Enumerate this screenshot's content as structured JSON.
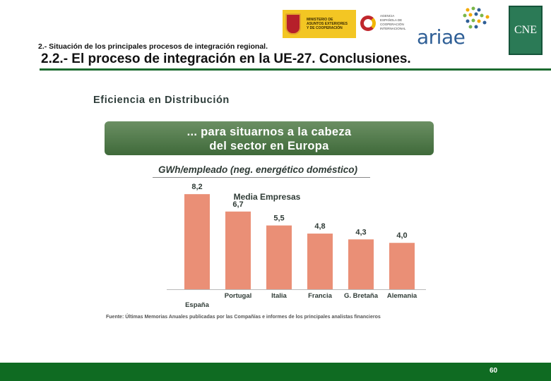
{
  "header": {
    "section_label": "2.- Situación de los principales procesos de integración regional.",
    "title": "2.2.- El proceso de integración en la UE-27.  Conclusiones.",
    "logos": {
      "ministerio_text": "MINISTERIO DE ASUNTOS EXTERIORES Y DE COOPERACIÓN",
      "cooperacion_text": "AGENCIA ESPAÑOLA DE COOPERACIÓN INTERNACIONAL",
      "ariae_text": "ariae",
      "cne_text": "CNE"
    }
  },
  "figure": {
    "heading": "Eficiencia en Distribución",
    "banner_line1": "... para situarnos a la cabeza",
    "banner_line2": "del sector en Europa",
    "subheading": "GWh/empleado (neg. energético doméstico)",
    "source": "Fuente: Últimas Memorias Anuales publicadas por las Compañías e informes de los principales analistas financieros"
  },
  "chart_data": {
    "type": "bar",
    "title": "Media Empresas",
    "categories": [
      "España",
      "Portugal",
      "Italia",
      "Francia",
      "G. Bretaña",
      "Alemania"
    ],
    "values": [
      8.2,
      6.7,
      5.5,
      4.8,
      4.3,
      4.0
    ],
    "value_labels": [
      "8,2",
      "6,7",
      "5,5",
      "4,8",
      "4,3",
      "4,0"
    ],
    "ylim": [
      0,
      9
    ],
    "bar_color": "#e8856a"
  },
  "footer": {
    "page_number": "60",
    "color": "#0f6b22"
  }
}
